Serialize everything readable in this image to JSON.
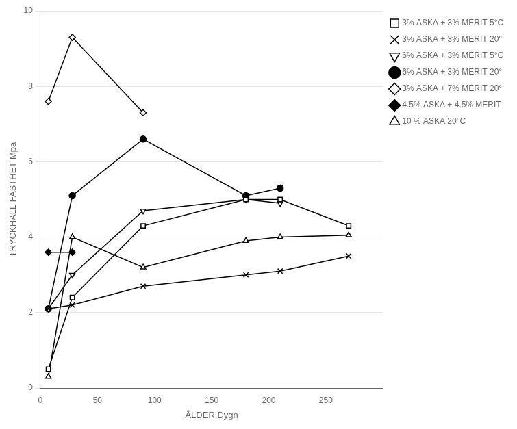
{
  "chart_data": {
    "type": "line",
    "xlabel": "ÅLDER Dygn",
    "ylabel": "TRYCKHALL FASTHET Mpa",
    "xlim": [
      0,
      300
    ],
    "ylim": [
      0,
      10
    ],
    "xticks": [
      0,
      50,
      100,
      150,
      200,
      250
    ],
    "yticks": [
      0,
      2,
      4,
      6,
      8,
      10
    ],
    "grid": "y",
    "legend": "right",
    "series": [
      {
        "name": "3% ASKA + 3% MERIT 5°C",
        "x": [
          7,
          28,
          90,
          180,
          210,
          270
        ],
        "values": [
          0.5,
          2.4,
          4.3,
          5.0,
          5.0,
          4.3
        ],
        "color": "black",
        "marker": "open-square",
        "line_style": "solid"
      },
      {
        "name": "3% ASKA + 3% MERIT 20°",
        "x": [
          7,
          28,
          90,
          180,
          210,
          270
        ],
        "values": [
          2.1,
          2.2,
          2.7,
          3.0,
          3.1,
          3.5
        ],
        "color": "black",
        "marker": "x",
        "line_style": "solid"
      },
      {
        "name": "6% ASKA + 3% MERIT 5°C",
        "x": [
          7,
          28,
          90,
          180,
          210
        ],
        "values": [
          2.1,
          3.0,
          4.7,
          5.0,
          4.9
        ],
        "color": "black",
        "marker": "open-triangle-down",
        "line_style": "solid"
      },
      {
        "name": "6% ASKA + 3% MERIT 20°",
        "x": [
          7,
          28,
          90,
          180,
          210
        ],
        "values": [
          2.1,
          5.1,
          6.6,
          5.1,
          5.3
        ],
        "color": "black",
        "marker": "filled-circle",
        "line_style": "solid"
      },
      {
        "name": "3% ASKA + 7% MERIT 20°",
        "x": [
          7,
          28,
          90
        ],
        "values": [
          7.6,
          9.3,
          7.3
        ],
        "color": "black",
        "marker": "open-diamond",
        "line_style": "solid"
      },
      {
        "name": "4.5% ASKA + 4.5% MERIT",
        "x": [
          7,
          28
        ],
        "values": [
          3.6,
          3.6
        ],
        "color": "black",
        "marker": "filled-diamond",
        "line_style": "solid"
      },
      {
        "name": "10 % ASKA 20°C",
        "x": [
          7,
          28,
          90,
          180,
          210,
          270
        ],
        "values": [
          0.3,
          4.0,
          3.2,
          3.9,
          4.0,
          4.05
        ],
        "color": "black",
        "marker": "open-triangle",
        "line_style": "solid"
      }
    ]
  }
}
